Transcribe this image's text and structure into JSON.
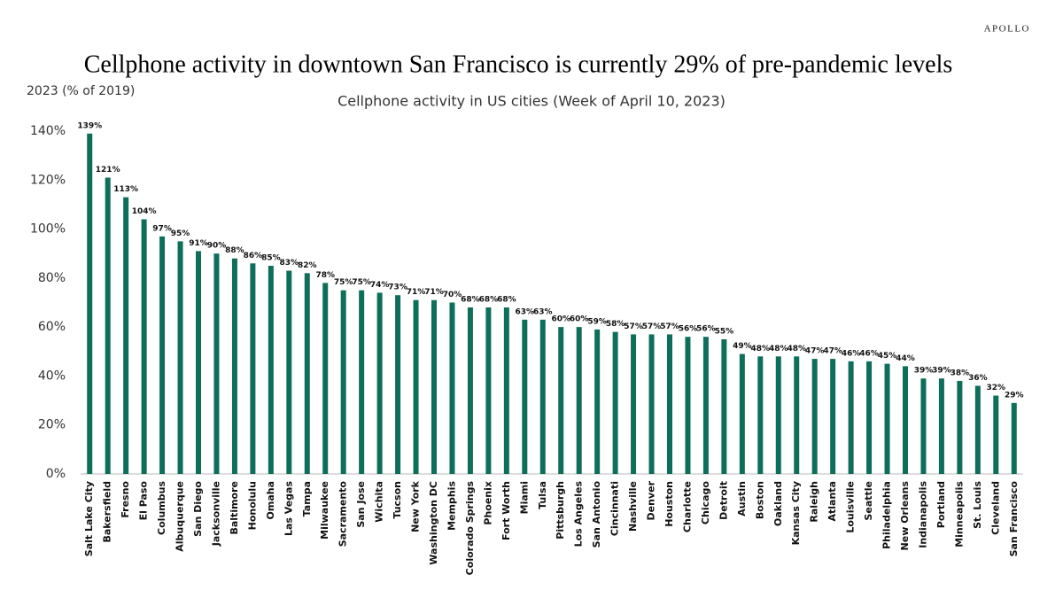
{
  "brand": "APOLLO",
  "chart_data": {
    "type": "bar",
    "title": "Cellphone activity in downtown San Francisco is currently 29% of pre-pandemic levels",
    "subtitle": "Cellphone activity in US cities (Week of April 10, 2023)",
    "y_label": "2023 (% of 2019)",
    "categories": [
      "Salt Lake City",
      "Bakersfield",
      "Fresno",
      "El Paso",
      "Columbus",
      "Albuquerque",
      "San Diego",
      "Jacksonville",
      "Baltimore",
      "Honolulu",
      "Omaha",
      "Las Vegas",
      "Tampa",
      "Milwaukee",
      "Sacramento",
      "San Jose",
      "Wichita",
      "Tucson",
      "New York",
      "Washington DC",
      "Memphis",
      "Colorado Springs",
      "Phoenix",
      "Fort Worth",
      "Miami",
      "Tulsa",
      "Pittsburgh",
      "Los Angeles",
      "San Antonio",
      "Cincinnati",
      "Nashville",
      "Denver",
      "Houston",
      "Charlotte",
      "Chicago",
      "Detroit",
      "Austin",
      "Boston",
      "Oakland",
      "Kansas City",
      "Raleigh",
      "Atlanta",
      "Louisville",
      "Seattle",
      "Philadelphia",
      "New Orleans",
      "Indianapolis",
      "Portland",
      "Minneapolis",
      "St. Louis",
      "Cleveland",
      "San Francisco"
    ],
    "values": [
      139,
      121,
      113,
      104,
      97,
      95,
      91,
      90,
      88,
      86,
      85,
      83,
      82,
      78,
      75,
      75,
      74,
      73,
      71,
      71,
      70,
      68,
      68,
      68,
      63,
      63,
      60,
      60,
      59,
      58,
      57,
      57,
      57,
      56,
      56,
      55,
      49,
      48,
      48,
      48,
      47,
      47,
      46,
      46,
      45,
      44,
      39,
      39,
      38,
      36,
      32,
      29
    ],
    "value_labels": [
      "139%",
      "121%",
      "113%",
      "104%",
      "97%",
      "95%",
      "91%",
      "90%",
      "88%",
      "86%",
      "85%",
      "83%",
      "82%",
      "78%",
      "75%",
      "75%",
      "74%",
      "73%",
      "71%",
      "71%",
      "70%",
      "68%",
      "68%",
      "68%",
      "63%",
      "63%",
      "60%",
      "60%",
      "59%",
      "58%",
      "57%",
      "57%",
      "57%",
      "56%",
      "56%",
      "55%",
      "49%",
      "48%",
      "48%",
      "48%",
      "47%",
      "47%",
      "46%",
      "46%",
      "45%",
      "44%",
      "39%",
      "39%",
      "38%",
      "36%",
      "32%",
      "29%"
    ],
    "color": "#0d6e5a",
    "ylim": [
      0,
      140
    ],
    "yticks": [
      {
        "value": 0,
        "label": "0%"
      },
      {
        "value": 20,
        "label": "20%"
      },
      {
        "value": 40,
        "label": "40%"
      },
      {
        "value": 60,
        "label": "60%"
      },
      {
        "value": 80,
        "label": "80%"
      },
      {
        "value": 100,
        "label": "100%"
      },
      {
        "value": 120,
        "label": "120%"
      },
      {
        "value": 140,
        "label": "140%"
      }
    ],
    "grid": false
  }
}
